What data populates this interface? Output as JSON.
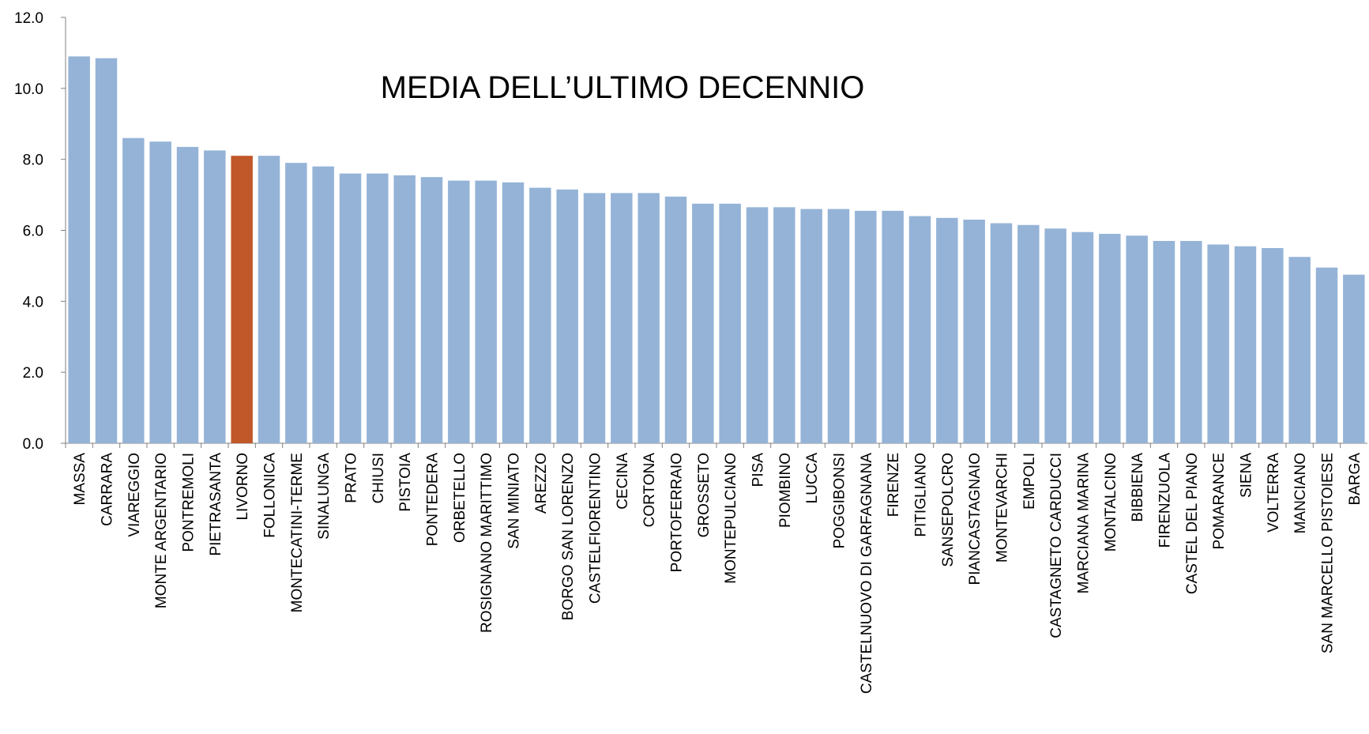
{
  "chart_data": {
    "type": "bar",
    "title": "MEDIA DELL’ULTIMO DECENNIO",
    "categories": [
      "MASSA",
      "CARRARA",
      "VIAREGGIO",
      "MONTE ARGENTARIO",
      "PONTREMOLI",
      "PIETRASANTA",
      "LIVORNO",
      "FOLLONICA",
      "MONTECATINI-TERME",
      "SINALUNGA",
      "PRATO",
      "CHIUSI",
      "PISTOIA",
      "PONTEDERA",
      "ORBETELLO",
      "ROSIGNANO MARITTIMO",
      "SAN MINIATO",
      "AREZZO",
      "BORGO SAN LORENZO",
      "CASTELFIORENTINO",
      "CECINA",
      "CORTONA",
      "PORTOFERRAIO",
      "GROSSETO",
      "MONTEPULCIANO",
      "PISA",
      "PIOMBINO",
      "LUCCA",
      "POGGIBONSI",
      "CASTELNUOVO DI GARFAGNANA",
      "FIRENZE",
      "PITIGLIANO",
      "SANSEPOLCRO",
      "PIANCASTAGNAIO",
      "MONTEVARCHI",
      "EMPOLI",
      "CASTAGNETO CARDUCCI",
      "MARCIANA MARINA",
      "MONTALCINO",
      "BIBBIENA",
      "FIRENZUOLA",
      "CASTEL DEL PIANO",
      "POMARANCE",
      "SIENA",
      "VOLTERRA",
      "MANCIANO",
      "SAN MARCELLO PISTOIESE",
      "BARGA"
    ],
    "values": [
      10.9,
      10.85,
      8.6,
      8.5,
      8.35,
      8.25,
      8.1,
      8.1,
      7.9,
      7.8,
      7.6,
      7.6,
      7.55,
      7.5,
      7.4,
      7.4,
      7.35,
      7.2,
      7.15,
      7.05,
      7.05,
      7.05,
      6.95,
      6.75,
      6.75,
      6.65,
      6.65,
      6.6,
      6.6,
      6.55,
      6.55,
      6.4,
      6.35,
      6.3,
      6.2,
      6.15,
      6.05,
      5.95,
      5.9,
      5.85,
      5.7,
      5.7,
      5.6,
      5.55,
      5.5,
      5.25,
      4.95,
      4.75
    ],
    "color": "#95b3d7",
    "highlight": {
      "category": "LIVORNO",
      "color": "#c0582a"
    },
    "ylim": [
      0,
      12
    ],
    "yticks": [
      {
        "value": 0,
        "label": "0.0"
      },
      {
        "value": 2,
        "label": "2.0"
      },
      {
        "value": 4,
        "label": "4.0"
      },
      {
        "value": 6,
        "label": "6.0"
      },
      {
        "value": 8,
        "label": "8.0"
      },
      {
        "value": 10,
        "label": "10.0"
      },
      {
        "value": 12,
        "label": "12.0"
      }
    ],
    "grid": false
  }
}
